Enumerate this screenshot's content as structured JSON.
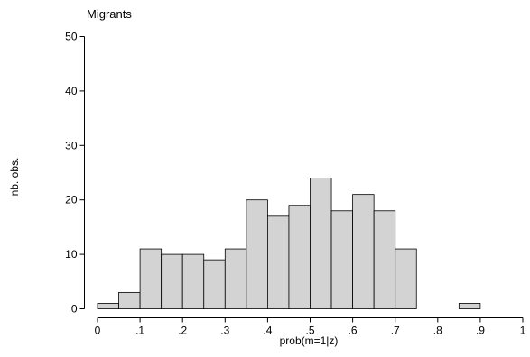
{
  "chart_data": {
    "type": "bar",
    "title": "Migrants",
    "xlabel": "prob(m=1|z)",
    "ylabel": "nb. obs.",
    "xlim": [
      0,
      1
    ],
    "ylim": [
      0,
      50
    ],
    "bin_width": 0.05,
    "xticks": [
      {
        "value": 0,
        "label": "0"
      },
      {
        "value": 0.1,
        "label": ".1"
      },
      {
        "value": 0.2,
        "label": ".2"
      },
      {
        "value": 0.3,
        "label": ".3"
      },
      {
        "value": 0.4,
        "label": ".4"
      },
      {
        "value": 0.5,
        "label": ".5"
      },
      {
        "value": 0.6,
        "label": ".6"
      },
      {
        "value": 0.7,
        "label": ".7"
      },
      {
        "value": 0.8,
        "label": ".8"
      },
      {
        "value": 0.9,
        "label": ".9"
      },
      {
        "value": 1,
        "label": "1"
      }
    ],
    "yticks": [
      {
        "value": 0,
        "label": "0"
      },
      {
        "value": 10,
        "label": "10"
      },
      {
        "value": 20,
        "label": "20"
      },
      {
        "value": 30,
        "label": "30"
      },
      {
        "value": 40,
        "label": "40"
      },
      {
        "value": 50,
        "label": "50"
      }
    ],
    "bins": [
      {
        "start": 0.0,
        "value": 1
      },
      {
        "start": 0.05,
        "value": 3
      },
      {
        "start": 0.1,
        "value": 11
      },
      {
        "start": 0.15,
        "value": 10
      },
      {
        "start": 0.2,
        "value": 10
      },
      {
        "start": 0.25,
        "value": 9
      },
      {
        "start": 0.3,
        "value": 11
      },
      {
        "start": 0.35,
        "value": 20
      },
      {
        "start": 0.4,
        "value": 17
      },
      {
        "start": 0.45,
        "value": 19
      },
      {
        "start": 0.5,
        "value": 24
      },
      {
        "start": 0.55,
        "value": 18
      },
      {
        "start": 0.6,
        "value": 21
      },
      {
        "start": 0.65,
        "value": 18
      },
      {
        "start": 0.7,
        "value": 11
      },
      {
        "start": 0.85,
        "value": 1
      }
    ],
    "bar_color": "#d3d3d3",
    "grid": false
  }
}
